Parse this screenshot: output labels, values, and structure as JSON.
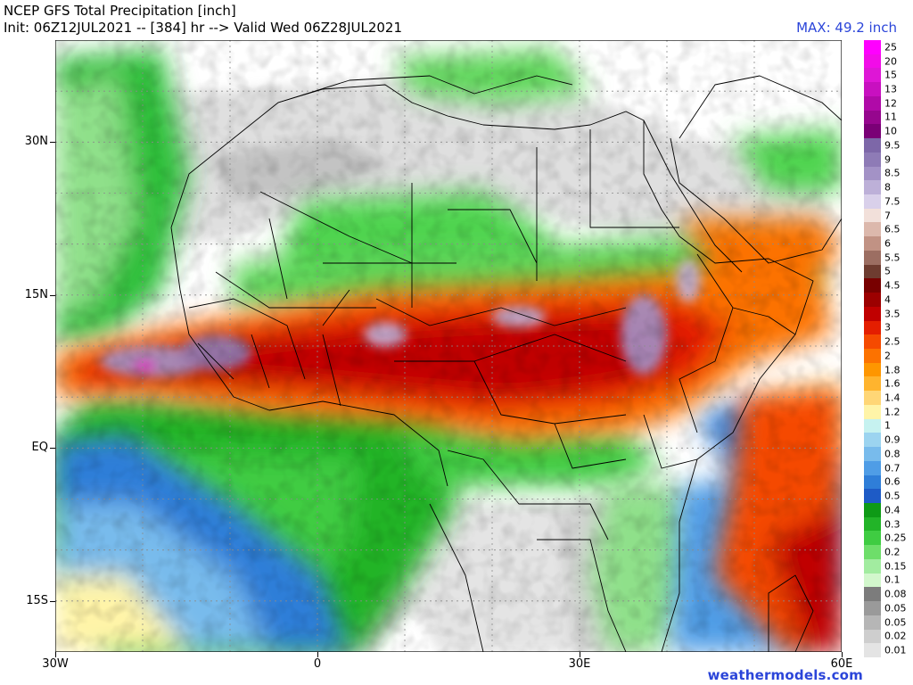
{
  "header": {
    "title": "NCEP GFS Total Precipitation [inch]",
    "init_line": "Init: 06Z12JUL2021 -- [384] hr --> Valid Wed 06Z28JUL2021",
    "max_label": "MAX: 49.2 inch"
  },
  "footer": {
    "credit": "weathermodels.com"
  },
  "map": {
    "projection": "lat-lon",
    "lon_range": [
      -30,
      60
    ],
    "lat_range": [
      -20,
      40
    ],
    "lat_labels": [
      {
        "label": "30N",
        "lat": 30
      },
      {
        "label": "15N",
        "lat": 15
      },
      {
        "label": "EQ",
        "lat": 0
      },
      {
        "label": "15S",
        "lat": -15
      }
    ],
    "lon_labels": [
      {
        "label": "30W",
        "lon": -30
      },
      {
        "label": "0",
        "lon": 0
      },
      {
        "label": "30E",
        "lon": 30
      },
      {
        "label": "60E",
        "lon": 60
      }
    ],
    "colors": {
      "ocean": "#ffffff",
      "border": "#000000",
      "grid": "#9a9a9a"
    }
  },
  "legend": [
    {
      "label": "25",
      "color": "#ff00ff"
    },
    {
      "label": "20",
      "color": "#f20ce8"
    },
    {
      "label": "15",
      "color": "#de16d6"
    },
    {
      "label": "13",
      "color": "#c810c0"
    },
    {
      "label": "12",
      "color": "#b00aa8"
    },
    {
      "label": "11",
      "color": "#96068e"
    },
    {
      "label": "10",
      "color": "#7a0076"
    },
    {
      "label": "9.5",
      "color": "#7d67a8"
    },
    {
      "label": "9",
      "color": "#8e7bb6"
    },
    {
      "label": "8.5",
      "color": "#a392c6"
    },
    {
      "label": "8",
      "color": "#bdb0d8"
    },
    {
      "label": "7.5",
      "color": "#d9d0ea"
    },
    {
      "label": "7",
      "color": "#f2e0da"
    },
    {
      "label": "6.5",
      "color": "#dcb8ac"
    },
    {
      "label": "6",
      "color": "#c19284"
    },
    {
      "label": "5.5",
      "color": "#9c6e62"
    },
    {
      "label": "5",
      "color": "#6e3c30"
    },
    {
      "label": "4.5",
      "color": "#780000"
    },
    {
      "label": "4",
      "color": "#9c0000"
    },
    {
      "label": "3.5",
      "color": "#c00000"
    },
    {
      "label": "3",
      "color": "#e41e00"
    },
    {
      "label": "2.5",
      "color": "#f54a00"
    },
    {
      "label": "2",
      "color": "#fc7200"
    },
    {
      "label": "1.8",
      "color": "#fe9600"
    },
    {
      "label": "1.6",
      "color": "#ffb42e"
    },
    {
      "label": "1.4",
      "color": "#ffd676"
    },
    {
      "label": "1.2",
      "color": "#fff4a8"
    },
    {
      "label": "1",
      "color": "#c6f2f0"
    },
    {
      "label": "0.9",
      "color": "#9cd4f0"
    },
    {
      "label": "0.8",
      "color": "#78bbec"
    },
    {
      "label": "0.7",
      "color": "#4f9de6"
    },
    {
      "label": "0.6",
      "color": "#2f7ed8"
    },
    {
      "label": "0.5",
      "color": "#1e5bc6"
    },
    {
      "label": "0.4",
      "color": "#0e9a16"
    },
    {
      "label": "0.3",
      "color": "#22b428"
    },
    {
      "label": "0.25",
      "color": "#3fcc42"
    },
    {
      "label": "0.2",
      "color": "#6ede6a"
    },
    {
      "label": "0.15",
      "color": "#a2eca0"
    },
    {
      "label": "0.1",
      "color": "#d2f7cc"
    },
    {
      "label": "0.08",
      "color": "#7c7c7c"
    },
    {
      "label": "0.05",
      "color": "#9a9a9a"
    },
    {
      "label": "0.05",
      "color": "#b6b6b6"
    },
    {
      "label": "0.02",
      "color": "#cecece"
    },
    {
      "label": "0.01",
      "color": "#e4e4e4"
    }
  ]
}
